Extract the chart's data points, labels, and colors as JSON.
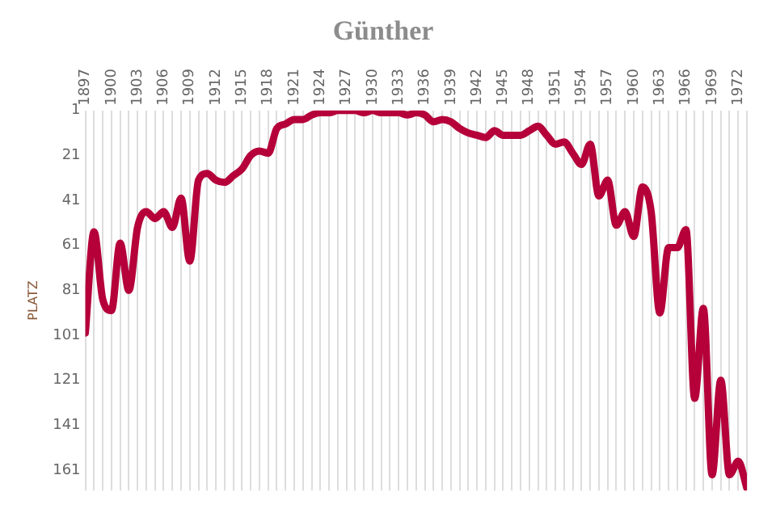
{
  "chart_data": {
    "type": "line",
    "title": "Günther",
    "ylabel": "PLATZ",
    "x": [
      1897,
      1898,
      1899,
      1900,
      1901,
      1902,
      1903,
      1904,
      1905,
      1906,
      1907,
      1908,
      1909,
      1910,
      1911,
      1912,
      1913,
      1914,
      1915,
      1916,
      1917,
      1918,
      1919,
      1920,
      1921,
      1922,
      1923,
      1924,
      1925,
      1926,
      1927,
      1928,
      1929,
      1930,
      1931,
      1932,
      1933,
      1934,
      1935,
      1936,
      1937,
      1938,
      1939,
      1940,
      1941,
      1942,
      1943,
      1944,
      1945,
      1946,
      1947,
      1948,
      1949,
      1950,
      1951,
      1952,
      1953,
      1954,
      1955,
      1956,
      1957,
      1958,
      1959,
      1960,
      1961,
      1962,
      1963,
      1964,
      1965,
      1966,
      1967,
      1968,
      1969,
      1970,
      1971,
      1972,
      1973
    ],
    "series": [
      {
        "color": "#b5003a",
        "values": [
          100,
          55,
          85,
          90,
          60,
          81,
          53,
          46,
          49,
          46,
          53,
          40,
          68,
          32,
          29,
          32,
          33,
          30,
          27,
          21,
          19,
          20,
          9,
          7,
          5,
          5,
          3,
          2,
          2,
          1,
          1,
          1,
          2,
          1,
          2,
          2,
          2,
          3,
          2,
          3,
          6,
          5,
          6,
          9,
          11,
          12,
          13,
          10,
          12,
          12,
          12,
          10,
          8,
          12,
          16,
          15,
          20,
          25,
          16,
          39,
          32,
          52,
          46,
          57,
          35,
          46,
          91,
          62,
          62,
          54,
          129,
          89,
          163,
          121,
          163,
          157,
          169
        ]
      }
    ],
    "xlim": [
      1897,
      1973
    ],
    "xticks": [
      1897,
      {
        "value": 1898,
        "label": null
      },
      {
        "value": 1899,
        "label": null
      },
      1900,
      {
        "value": 1901,
        "label": null
      },
      {
        "value": 1902,
        "label": null
      },
      1903,
      {
        "value": 1904,
        "label": null
      },
      {
        "value": 1905,
        "label": null
      },
      1906,
      {
        "value": 1907,
        "label": null
      },
      {
        "value": 1908,
        "label": null
      },
      1909,
      {
        "value": 1910,
        "label": null
      },
      {
        "value": 1911,
        "label": null
      },
      1912,
      {
        "value": 1913,
        "label": null
      },
      {
        "value": 1914,
        "label": null
      },
      1915,
      {
        "value": 1916,
        "label": null
      },
      {
        "value": 1917,
        "label": null
      },
      1918,
      {
        "value": 1919,
        "label": null
      },
      {
        "value": 1920,
        "label": null
      },
      1921,
      {
        "value": 1922,
        "label": null
      },
      {
        "value": 1923,
        "label": null
      },
      1924,
      {
        "value": 1925,
        "label": null
      },
      {
        "value": 1926,
        "label": null
      },
      1927,
      {
        "value": 1928,
        "label": null
      },
      {
        "value": 1929,
        "label": null
      },
      1930,
      {
        "value": 1931,
        "label": null
      },
      {
        "value": 1932,
        "label": null
      },
      1933,
      {
        "value": 1934,
        "label": null
      },
      {
        "value": 1935,
        "label": null
      },
      1936,
      {
        "value": 1937,
        "label": null
      },
      {
        "value": 1938,
        "label": null
      },
      1939,
      {
        "value": 1940,
        "label": null
      },
      {
        "value": 1941,
        "label": null
      },
      1942,
      {
        "value": 1943,
        "label": null
      },
      {
        "value": 1944,
        "label": null
      },
      1945,
      {
        "value": 1946,
        "label": null
      },
      {
        "value": 1947,
        "label": null
      },
      1948,
      {
        "value": 1949,
        "label": null
      },
      {
        "value": 1950,
        "label": null
      },
      1951,
      {
        "value": 1952,
        "label": null
      },
      {
        "value": 1953,
        "label": null
      },
      1954,
      {
        "value": 1955,
        "label": null
      },
      {
        "value": 1956,
        "label": null
      },
      1957,
      {
        "value": 1958,
        "label": null
      },
      {
        "value": 1959,
        "label": null
      },
      1960,
      {
        "value": 1961,
        "label": null
      },
      {
        "value": 1962,
        "label": null
      },
      1963,
      {
        "value": 1964,
        "label": null
      },
      {
        "value": 1965,
        "label": null
      },
      1966,
      {
        "value": 1967,
        "label": null
      },
      {
        "value": 1968,
        "label": null
      },
      1969,
      {
        "value": 1970,
        "label": null
      },
      {
        "value": 1971,
        "label": null
      },
      1972,
      {
        "value": 1973,
        "label": null
      }
    ],
    "ylim": [
      170,
      1
    ],
    "yticks": [
      1,
      21,
      41,
      61,
      81,
      101,
      121,
      141,
      161
    ],
    "grid": "x",
    "legend": false,
    "marker": "none",
    "line_style": "solid"
  }
}
